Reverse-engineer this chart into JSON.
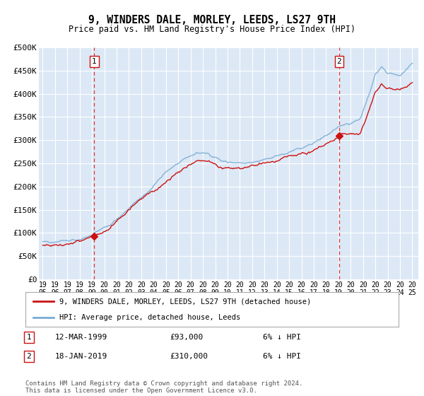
{
  "title": "9, WINDERS DALE, MORLEY, LEEDS, LS27 9TH",
  "subtitle": "Price paid vs. HM Land Registry's House Price Index (HPI)",
  "ylabel_ticks": [
    "£0",
    "£50K",
    "£100K",
    "£150K",
    "£200K",
    "£250K",
    "£300K",
    "£350K",
    "£400K",
    "£450K",
    "£500K"
  ],
  "ytick_values": [
    0,
    50000,
    100000,
    150000,
    200000,
    250000,
    300000,
    350000,
    400000,
    450000,
    500000
  ],
  "ylim": [
    0,
    500000
  ],
  "xlim_start": 1994.7,
  "xlim_end": 2025.5,
  "hpi_color": "#7aadd4",
  "price_color": "#cc1111",
  "marker1_date": 1999.19,
  "marker1_price": 93000,
  "marker1_label": "12-MAR-1999",
  "marker1_amount": "£93,000",
  "marker1_hpi": "6% ↓ HPI",
  "marker2_date": 2019.05,
  "marker2_price": 310000,
  "marker2_label": "18-JAN-2019",
  "marker2_amount": "£310,000",
  "marker2_hpi": "6% ↓ HPI",
  "legend_line1": "9, WINDERS DALE, MORLEY, LEEDS, LS27 9TH (detached house)",
  "legend_line2": "HPI: Average price, detached house, Leeds",
  "footer": "Contains HM Land Registry data © Crown copyright and database right 2024.\nThis data is licensed under the Open Government Licence v3.0.",
  "background_color": "#dce8f5",
  "grid_color": "#ffffff",
  "xtick_years": [
    1995,
    1996,
    1997,
    1998,
    1999,
    2000,
    2001,
    2002,
    2003,
    2004,
    2005,
    2006,
    2007,
    2008,
    2009,
    2010,
    2011,
    2012,
    2013,
    2014,
    2015,
    2016,
    2017,
    2018,
    2019,
    2020,
    2021,
    2022,
    2023,
    2024,
    2025
  ]
}
